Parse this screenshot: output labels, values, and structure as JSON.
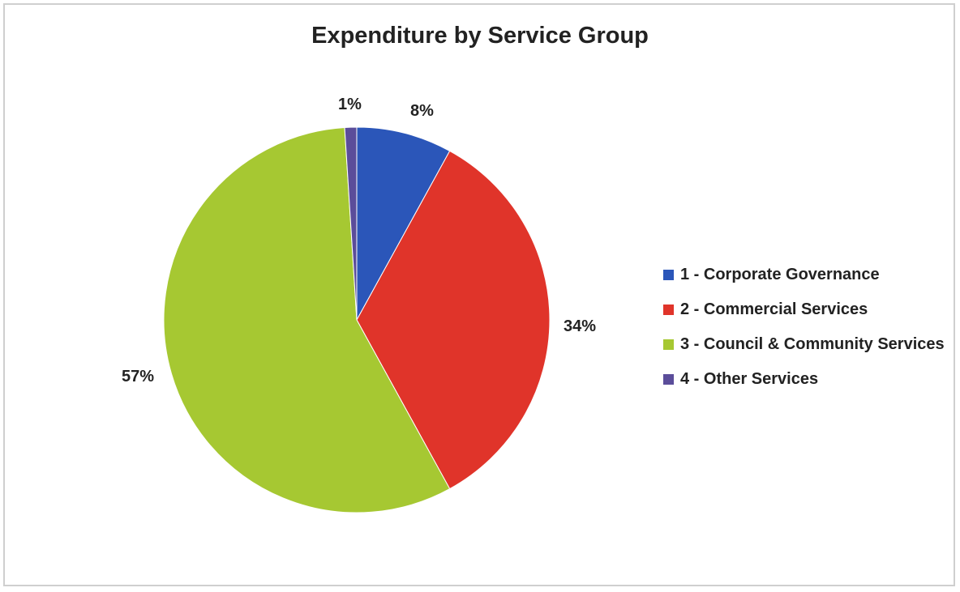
{
  "chart_data": {
    "type": "pie",
    "title": "Expenditure by Service Group",
    "categories": [
      "1 - Corporate Governance",
      "2 - Commercial Services",
      "3 - Council & Community Services",
      "4 - Other Services"
    ],
    "values": [
      8,
      34,
      57,
      1
    ],
    "labels": [
      "8%",
      "34%",
      "57%",
      "1%"
    ],
    "colors": [
      "#2b56b9",
      "#e0342a",
      "#a6c832",
      "#5b4d9a"
    ],
    "legend_position": "right"
  }
}
